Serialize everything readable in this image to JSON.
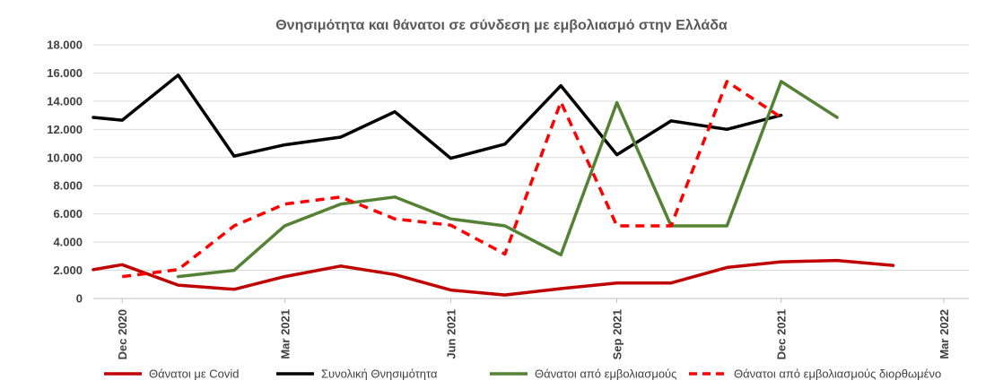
{
  "chart_data": {
    "type": "line",
    "title": "Θνησιμότητα και θάνατοι σε σύνδεση με εμβολιασμό στην Ελλάδα",
    "xlabel": "",
    "ylabel": "",
    "ylim": [
      0,
      18000
    ],
    "yticks": [
      0,
      2000,
      4000,
      6000,
      8000,
      10000,
      12000,
      14000,
      16000,
      18000
    ],
    "ytick_labels": [
      "0",
      "2.000",
      "4.000",
      "6.000",
      "8.000",
      "10.000",
      "12.000",
      "14.000",
      "16.000",
      "18.000"
    ],
    "xlim": [
      "2020-11-15",
      "2022-03-15"
    ],
    "xticks": [
      "2020-12-01",
      "2021-03-01",
      "2021-06-01",
      "2021-09-01",
      "2021-12-01",
      "2022-03-01"
    ],
    "xtick_labels": [
      "Dec 2020",
      "Mar 2021",
      "Jun 2021",
      "Sep 2021",
      "Dec 2021",
      "Mar 2022"
    ],
    "grid": "horizontal",
    "legend_position": "bottom",
    "series": [
      {
        "name": "Θάνατοι με Covid",
        "color": "#c00000",
        "style": "solid",
        "x": [
          "2020-11-15",
          "2020-12-01",
          "2021-01-01",
          "2021-02-01",
          "2021-03-01",
          "2021-04-01",
          "2021-05-01",
          "2021-06-01",
          "2021-07-01",
          "2021-08-01",
          "2021-09-01",
          "2021-10-01",
          "2021-11-01",
          "2021-12-01",
          "2022-01-01",
          "2022-02-01"
        ],
        "values": [
          2050,
          2400,
          950,
          650,
          1550,
          2300,
          1700,
          600,
          250,
          700,
          1100,
          1100,
          2200,
          2600,
          2700,
          2350
        ]
      },
      {
        "name": "Συνολική Θνησιμότητα",
        "color": "#000000",
        "style": "solid",
        "x": [
          "2020-11-15",
          "2020-12-01",
          "2021-01-01",
          "2021-02-01",
          "2021-03-01",
          "2021-04-01",
          "2021-05-01",
          "2021-06-01",
          "2021-07-01",
          "2021-08-01",
          "2021-09-01",
          "2021-10-01",
          "2021-11-01",
          "2021-12-01"
        ],
        "values": [
          12850,
          12650,
          15850,
          10100,
          10900,
          11450,
          13250,
          9950,
          10950,
          15100,
          10200,
          12600,
          12000,
          13000
        ]
      },
      {
        "name": "Θάνατοι από εμβολιασμούς",
        "color": "#548235",
        "style": "solid",
        "x": [
          "2021-01-01",
          "2021-02-01",
          "2021-03-01",
          "2021-04-01",
          "2021-05-01",
          "2021-06-01",
          "2021-07-01",
          "2021-08-01",
          "2021-09-01",
          "2021-10-01",
          "2021-11-01",
          "2021-12-01",
          "2022-01-01"
        ],
        "values": [
          1550,
          2000,
          5150,
          6700,
          7200,
          5650,
          5150,
          3100,
          13900,
          5150,
          5150,
          15400,
          12850
        ]
      },
      {
        "name": "Θάνατοι από εμβολιασμούς διορθωμένο",
        "color": "#ff0000",
        "style": "dashed",
        "x": [
          "2020-12-01",
          "2021-01-01",
          "2021-02-01",
          "2021-03-01",
          "2021-04-01",
          "2021-05-01",
          "2021-06-01",
          "2021-07-01",
          "2021-08-01",
          "2021-09-01",
          "2021-10-01",
          "2021-11-01",
          "2021-12-01"
        ],
        "values": [
          1550,
          2050,
          5150,
          6700,
          7200,
          5650,
          5200,
          3150,
          13950,
          5150,
          5150,
          15400,
          12850
        ]
      }
    ]
  }
}
